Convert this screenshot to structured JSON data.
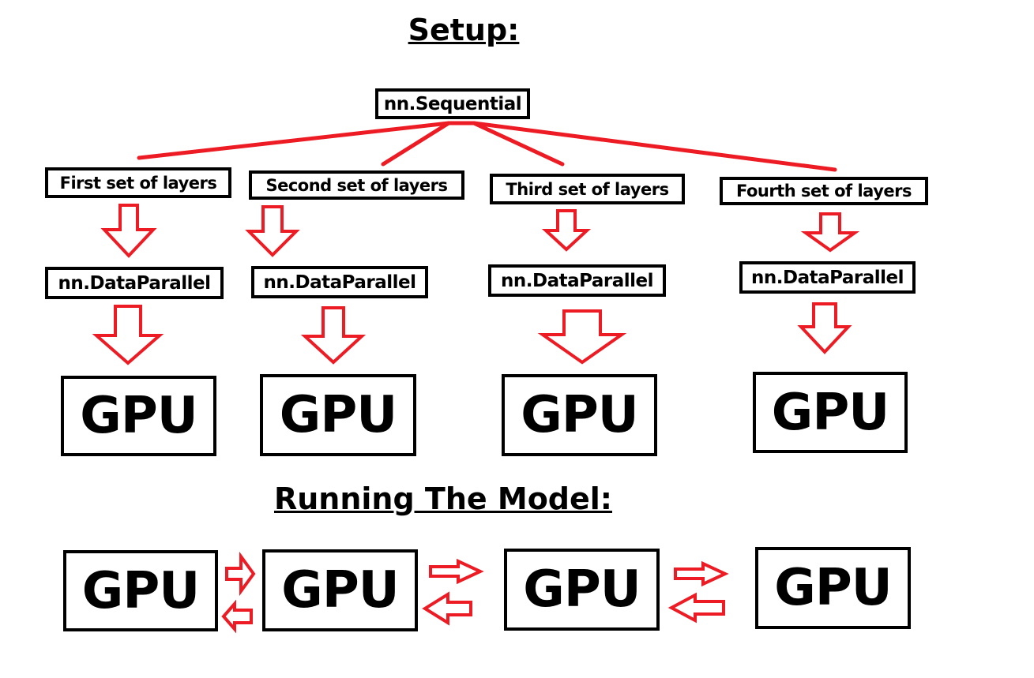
{
  "setup_title": "Setup:",
  "running_title": "Running The Model:",
  "root": "nn.Sequential",
  "columns": [
    {
      "layers": "First set of layers",
      "wrapper": "nn.DataParallel",
      "device": "GPU"
    },
    {
      "layers": "Second set of layers",
      "wrapper": "nn.DataParallel",
      "device": "GPU"
    },
    {
      "layers": "Third set of layers",
      "wrapper": "nn.DataParallel",
      "device": "GPU"
    },
    {
      "layers": "Fourth set of layers",
      "wrapper": "nn.DataParallel",
      "device": "GPU"
    }
  ],
  "running_devices": [
    "GPU",
    "GPU",
    "GPU",
    "GPU"
  ],
  "colors": {
    "arrow": "#ed1c24",
    "border": "#000000"
  }
}
